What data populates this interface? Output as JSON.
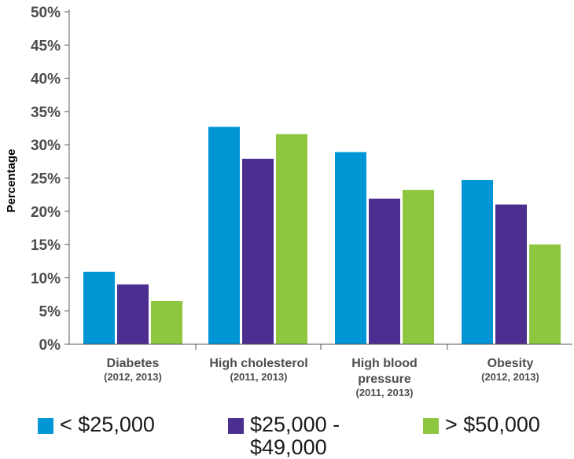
{
  "chart_data": {
    "type": "bar",
    "ylabel": "Percentage",
    "ylim": [
      0,
      50
    ],
    "yticks": [
      "0%",
      "5%",
      "10%",
      "15%",
      "20%",
      "25%",
      "30%",
      "35%",
      "40%",
      "45%",
      "50%"
    ],
    "categories": [
      {
        "label": "Diabetes",
        "sub": "(2012, 2013)"
      },
      {
        "label": "High cholesterol",
        "sub": "(2011, 2013)"
      },
      {
        "label": "High blood pressure",
        "sub": "(2011, 2013)"
      },
      {
        "label": "Obesity",
        "sub": "(2012, 2013)"
      }
    ],
    "series": [
      {
        "name": "< $25,000",
        "color": "#0096d6",
        "values": [
          10.9,
          32.7,
          28.9,
          24.7
        ]
      },
      {
        "name": "$25,000 - $49,000",
        "color": "#4b2e90",
        "values": [
          9.0,
          27.9,
          21.9,
          21.0
        ]
      },
      {
        "name": "> $50,000",
        "color": "#8dc63f",
        "values": [
          6.5,
          31.6,
          23.2,
          15.0
        ]
      }
    ],
    "grid": false,
    "legend_position": "bottom"
  }
}
